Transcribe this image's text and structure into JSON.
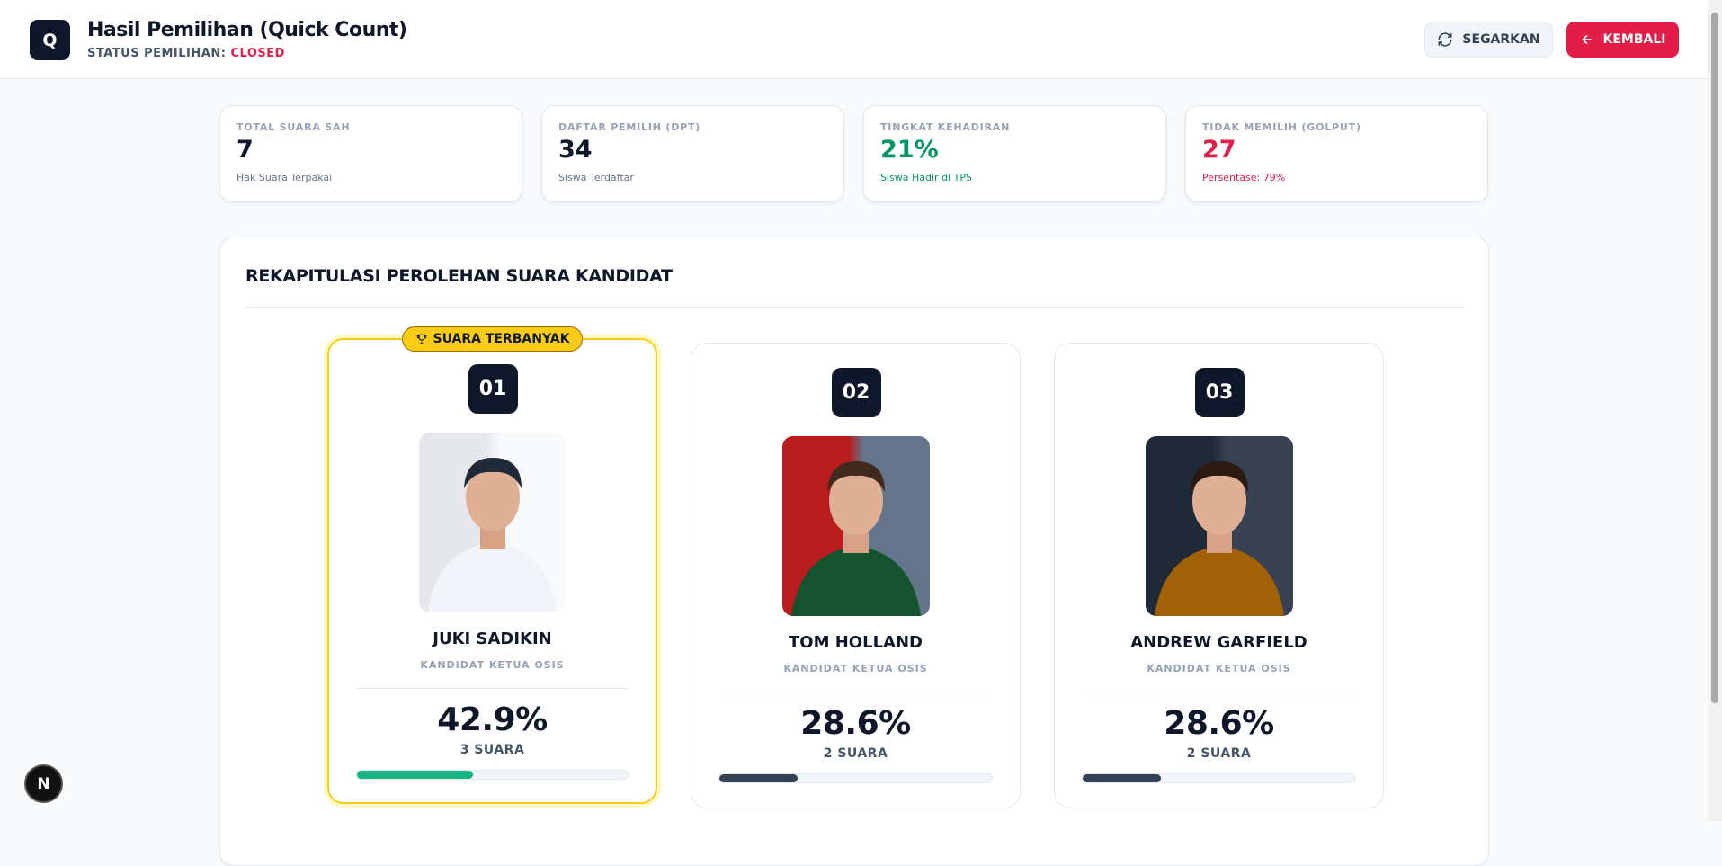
{
  "header": {
    "logo": "Q",
    "title": "Hasil Pemilihan (Quick Count)",
    "status_label": "STATUS PEMILIHAN:",
    "status": "CLOSED",
    "buttons": [
      "SEGARKAN",
      "KEMBALI"
    ]
  },
  "stats": [
    {
      "label": "TOTAL SUARA SAH",
      "value": "7",
      "note": "Hak Suara Terpakai"
    },
    {
      "label": "DAFTAR PEMILIH (DPT)",
      "value": "34",
      "note": "Siswa Terdaftar"
    },
    {
      "label": "TINGKAT KEHADIRAN",
      "value": "21%",
      "note": "Siswa Hadir di TPS"
    },
    {
      "label": "TIDAK MEMILIH (GOLPUT)",
      "value": "27",
      "note": "Persentase: 79%"
    }
  ],
  "section_title": "REKAPITULASI PEROLEHAN SUARA KANDIDAT",
  "candidates": [
    {
      "badge": "SUARA TERBANYAK",
      "number": "01",
      "name": "JUKI SADIKIN",
      "role": "KANDIDAT KETUA OSIS",
      "percent": 42.9,
      "percent_label": "42.9%",
      "votes": "3 SUARA"
    },
    {
      "number": "02",
      "name": "TOM HOLLAND",
      "role": "KANDIDAT KETUA OSIS",
      "percent": 28.6,
      "percent_label": "28.6%",
      "votes": "2 SUARA"
    },
    {
      "number": "03",
      "name": "ANDREW GARFIELD",
      "role": "KANDIDAT KETUA OSIS",
      "percent": 28.6,
      "percent_label": "28.6%",
      "votes": "2 SUARA"
    }
  ],
  "dev_badge": "N"
}
